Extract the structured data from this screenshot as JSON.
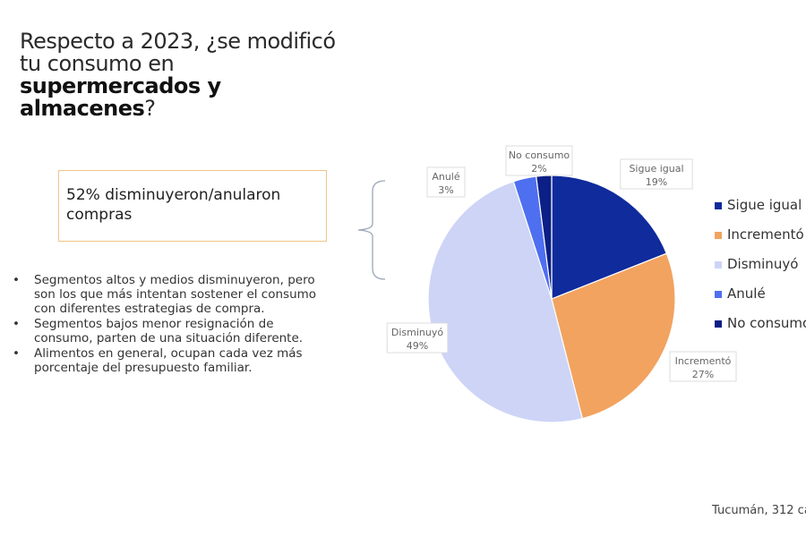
{
  "title": {
    "line1": "Respecto a 2023, ¿se modificó",
    "line2": "tu consumo en",
    "bold1": "supermercados y",
    "bold2": "almacenes",
    "end": "?"
  },
  "callout": "52% disminuyeron/anularon compras",
  "bullets": [
    "Segmentos altos y medios disminuyeron, pero son los que más intentan sostener el consumo con diferentes estrategias de compra.",
    "Segmentos bajos menor resignación de consumo, parten de una situación diferente.",
    "Alimentos en general, ocupan cada vez más porcentaje del presupuesto familiar."
  ],
  "source": "Tucumán, 312 ca",
  "chart_data": {
    "type": "pie",
    "start": "12 o'clock, clockwise",
    "legend_position": "right",
    "categories": [
      "Sigue igual",
      "Incrementó",
      "Disminuyó",
      "Anulé",
      "No consumo"
    ],
    "values": [
      19,
      27,
      49,
      3,
      2
    ],
    "labels": [
      "19%",
      "27%",
      "49%",
      "3%",
      "2%"
    ],
    "colors": [
      "#0f2b9c",
      "#f2a35f",
      "#cdd4f6",
      "#4e6ff0",
      "#0c1f86"
    ]
  }
}
